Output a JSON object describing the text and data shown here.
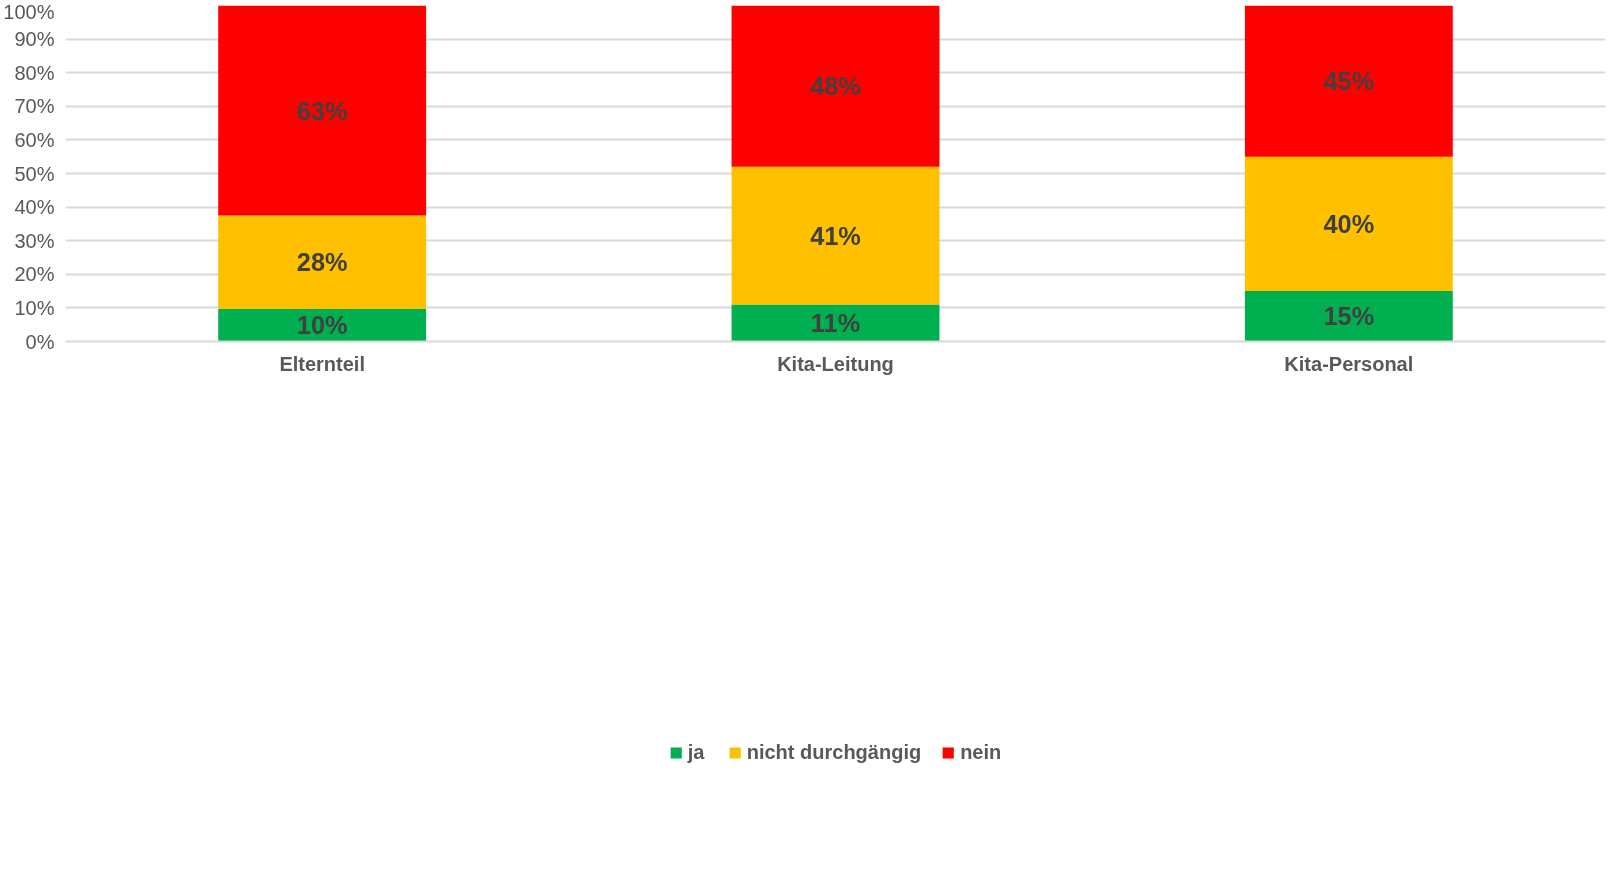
{
  "chart_data": {
    "type": "bar",
    "stacked": true,
    "categories": [
      "Elternteil",
      "Kita-Leitung",
      "Kita-Personal"
    ],
    "series": [
      {
        "name": "ja",
        "color": "#00b050",
        "values": [
          9.7,
          11,
          15
        ],
        "value_labels": [
          "10%",
          "11%",
          "15%"
        ]
      },
      {
        "name": "nicht durchgängig",
        "color": "#ffc000",
        "values": [
          27.8,
          41,
          40
        ],
        "value_labels": [
          "28%",
          "41%",
          "40%"
        ]
      },
      {
        "name": "nein",
        "color": "#ff0000",
        "values": [
          62.5,
          48,
          45
        ],
        "value_labels": [
          "63%",
          "48%",
          "45%"
        ]
      }
    ],
    "ylim": [
      0,
      100
    ],
    "yticks": [
      {
        "value": 0,
        "label": "0%"
      },
      {
        "value": 10,
        "label": "10%"
      },
      {
        "value": 20,
        "label": "20%"
      },
      {
        "value": 30,
        "label": "30%"
      },
      {
        "value": 40,
        "label": "40%"
      },
      {
        "value": 50,
        "label": "50%"
      },
      {
        "value": 60,
        "label": "60%"
      },
      {
        "value": 70,
        "label": "70%"
      },
      {
        "value": 80,
        "label": "80%"
      },
      {
        "value": 90,
        "label": "90%"
      },
      {
        "value": 100,
        "label": "100%"
      }
    ],
    "grid": "y",
    "legend": "bottom"
  }
}
